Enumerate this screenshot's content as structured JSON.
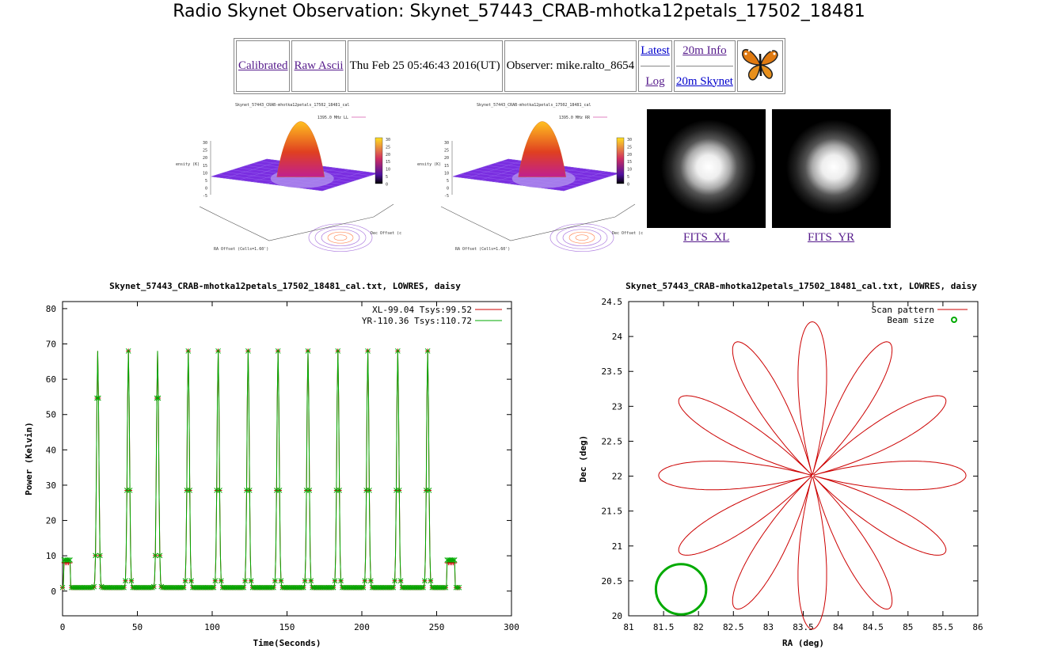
{
  "page": {
    "title": "Radio Skynet Observation: Skynet_57443_CRAB-mhotka12petals_17502_18481"
  },
  "nav": {
    "calibrated": "Calibrated",
    "raw_ascii": "Raw Ascii",
    "date": "Thu Feb 25 05:46:43 2016(UT)",
    "observer": "Observer: mike.ralto_8654",
    "latest": "Latest",
    "log": "Log",
    "info_20m": "20m Info",
    "skynet_20m": "20m Skynet"
  },
  "thumbs": {
    "ll_title": "Skynet_57443_CRAB-mhotka12petals_17502_18481_cal",
    "rr_title": "Skynet_57443_CRAB-mhotka12petals_17502_18481_cal",
    "ll_legend": "1395.0 MHz LL",
    "rr_legend": "1395.0 MHz RR",
    "zlabel": "ntensity (K)",
    "xlabel": "RA Offset (Cells=1.60')",
    "ylabel": "Dec Offset (cells)",
    "z_ticks": [
      "30",
      "25",
      "20",
      "15",
      "10",
      "5",
      "0",
      "-5"
    ],
    "cb_ticks": [
      "30",
      "25",
      "20",
      "15",
      "10",
      "5",
      "0"
    ]
  },
  "fits": {
    "xl": "FITS_XL",
    "yr": "FITS_YR"
  },
  "chart_data": [
    {
      "type": "line",
      "title": "Skynet_57443_CRAB-mhotka12petals_17502_18481_cal.txt, LOWRES, daisy",
      "xlabel": "Time(Seconds)",
      "ylabel": "Power (Kelvin)",
      "xlim": [
        0,
        300
      ],
      "ylim": [
        -7,
        82
      ],
      "x_ticks": [
        0,
        50,
        100,
        150,
        200,
        250,
        300
      ],
      "y_ticks": [
        0,
        10,
        20,
        30,
        40,
        50,
        60,
        70,
        80
      ],
      "legend": "top-right",
      "baseline": 1,
      "peaks": [
        23.5,
        44,
        63.5,
        84,
        104,
        124,
        144,
        164,
        184,
        204,
        224,
        244
      ],
      "peak_height": 68,
      "cal_pulses": [
        [
          1,
          5
        ],
        [
          257,
          262
        ]
      ],
      "cal_level": 8,
      "t_end": 265,
      "series": [
        {
          "name": "XL-99.04 Tsys:99.52",
          "color": "#cc0000"
        },
        {
          "name": "YR-110.36 Tsys:110.72",
          "color": "#00aa00"
        }
      ]
    },
    {
      "type": "line",
      "title": "Skynet_57443_CRAB-mhotka12petals_17502_18481_cal.txt, LOWRES, daisy",
      "xlabel": "RA (deg)",
      "ylabel": "Dec (deg)",
      "xlim": [
        81,
        86
      ],
      "ylim": [
        20,
        24.5
      ],
      "x_ticks": [
        81,
        81.5,
        82,
        82.5,
        83,
        83.5,
        84,
        84.5,
        85,
        85.5,
        86
      ],
      "y_ticks": [
        20,
        20.5,
        21,
        21.5,
        22,
        22.5,
        23,
        23.5,
        24,
        24.5
      ],
      "legend": "top-right",
      "center": [
        83.63,
        22.01
      ],
      "petals": 12,
      "petal_radius_deg": 2.2,
      "beam_center": [
        81.75,
        20.38
      ],
      "beam_radius_deg": 0.36,
      "series": [
        {
          "name": "Scan pattern",
          "color": "#cc0000"
        },
        {
          "name": "Beam size",
          "color": "#00aa00"
        }
      ]
    }
  ]
}
